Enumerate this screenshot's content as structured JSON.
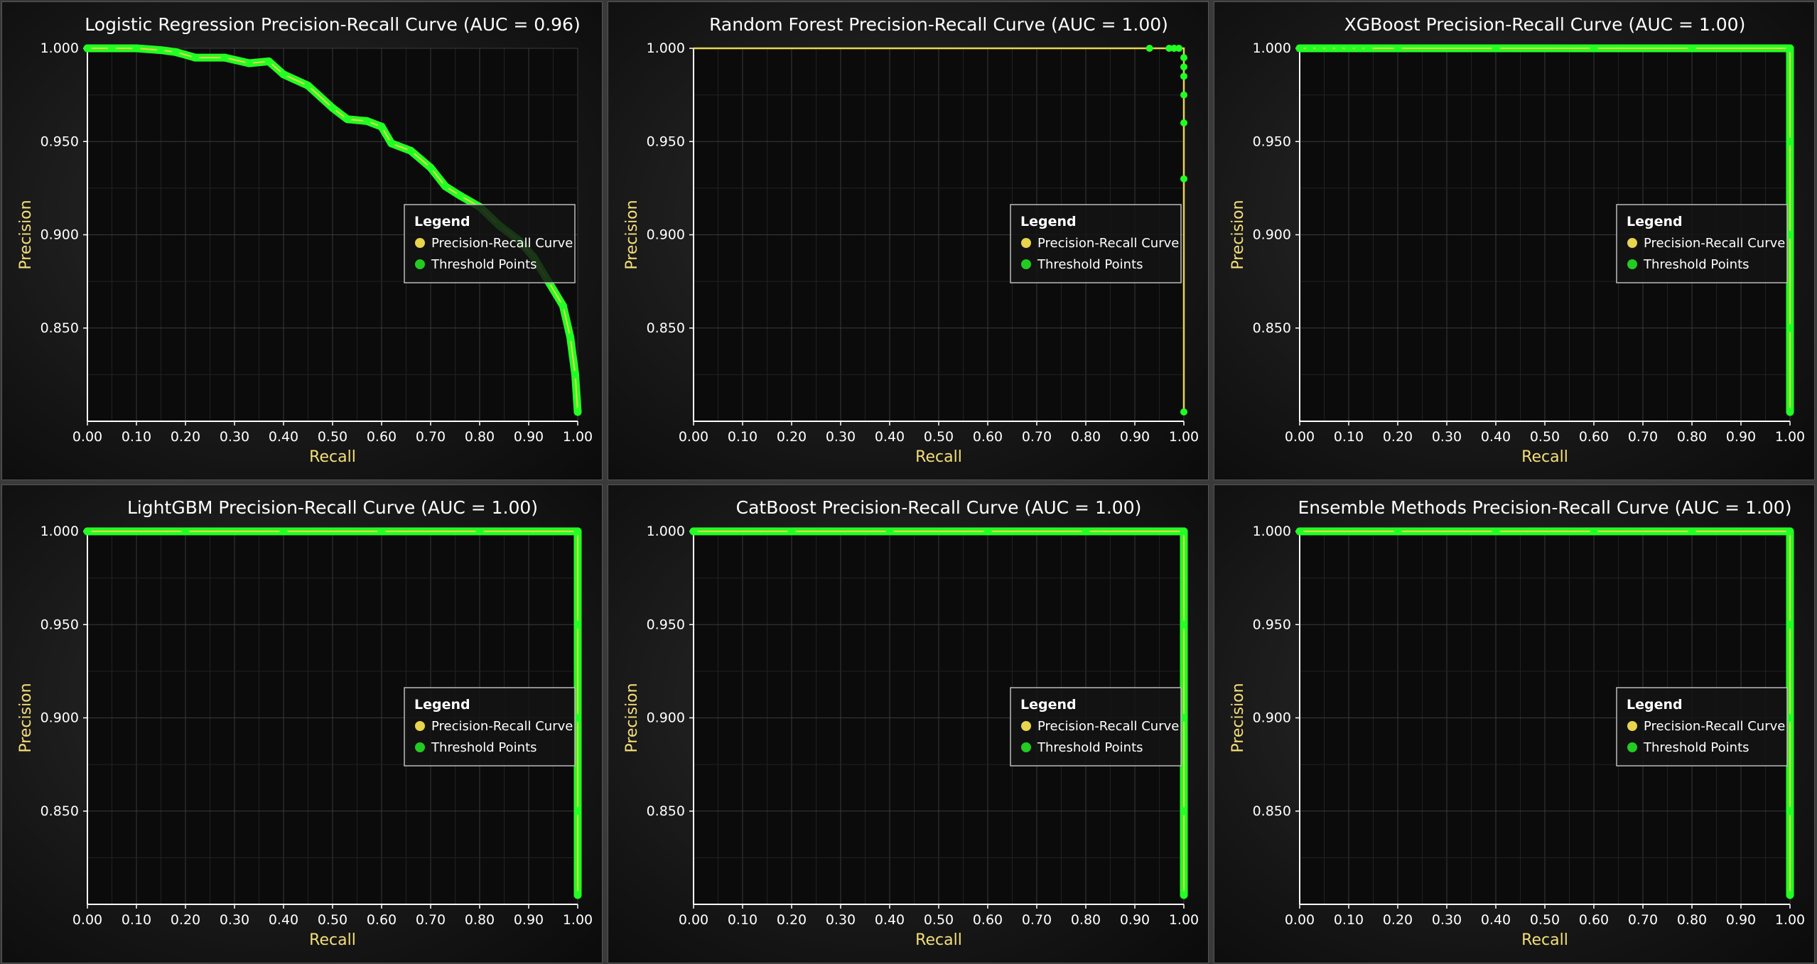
{
  "colors": {
    "curve": "#e8d44d",
    "points": "#22ff22",
    "legend_curve_dot": "#e8d44d",
    "legend_points_dot": "#22cc22",
    "axis_label": "#f5df7a",
    "text": "#ffffff",
    "grid": "#3a3a3a"
  },
  "legend": {
    "title": "Legend",
    "items": [
      {
        "label": "Precision-Recall Curve",
        "color": "#e8d44d"
      },
      {
        "label": "Threshold Points",
        "color": "#22cc22"
      }
    ]
  },
  "chart_data": [
    {
      "type": "line",
      "title": "Logistic Regression Precision-Recall Curve (AUC = 0.96)",
      "xlabel": "Recall",
      "ylabel": "Precision",
      "xlim": [
        0,
        1
      ],
      "ylim": [
        0.8,
        1.0
      ],
      "xticks": [
        "0.00",
        "0.10",
        "0.20",
        "0.30",
        "0.40",
        "0.50",
        "0.60",
        "0.70",
        "0.80",
        "0.90",
        "1.00"
      ],
      "yticks": [
        "0.850",
        "0.900",
        "0.950",
        "1.000"
      ],
      "grid": true,
      "legend_position": "right",
      "series": [
        {
          "name": "Precision-Recall Curve",
          "x": [
            0,
            0.05,
            0.1,
            0.15,
            0.18,
            0.22,
            0.28,
            0.33,
            0.37,
            0.4,
            0.45,
            0.5,
            0.53,
            0.57,
            0.6,
            0.62,
            0.66,
            0.7,
            0.73,
            0.76,
            0.8,
            0.84,
            0.88,
            0.91,
            0.94,
            0.97,
            0.985,
            0.995,
            1.0
          ],
          "y": [
            1.0,
            1.0,
            1.0,
            0.999,
            0.998,
            0.995,
            0.995,
            0.992,
            0.993,
            0.986,
            0.98,
            0.968,
            0.962,
            0.961,
            0.958,
            0.949,
            0.945,
            0.936,
            0.926,
            0.921,
            0.915,
            0.905,
            0.897,
            0.888,
            0.875,
            0.862,
            0.845,
            0.825,
            0.805
          ]
        },
        {
          "name": "Threshold Points",
          "x": [
            0,
            0.05,
            0.1,
            0.15,
            0.18,
            0.22,
            0.28,
            0.33,
            0.37,
            0.4,
            0.45,
            0.5,
            0.53,
            0.57,
            0.6,
            0.62,
            0.66,
            0.7,
            0.73,
            0.76,
            0.8,
            0.84,
            0.88,
            0.91,
            0.94,
            0.97,
            0.985,
            0.995,
            1.0
          ],
          "y": [
            1.0,
            1.0,
            1.0,
            0.999,
            0.998,
            0.995,
            0.995,
            0.992,
            0.993,
            0.986,
            0.98,
            0.968,
            0.962,
            0.961,
            0.958,
            0.949,
            0.945,
            0.936,
            0.926,
            0.921,
            0.915,
            0.905,
            0.897,
            0.888,
            0.875,
            0.862,
            0.845,
            0.825,
            0.805
          ]
        }
      ]
    },
    {
      "type": "line",
      "title": "Random Forest Precision-Recall Curve (AUC = 1.00)",
      "xlabel": "Recall",
      "ylabel": "Precision",
      "xlim": [
        0,
        1
      ],
      "ylim": [
        0.8,
        1.0
      ],
      "xticks": [
        "0.00",
        "0.10",
        "0.20",
        "0.30",
        "0.40",
        "0.50",
        "0.60",
        "0.70",
        "0.80",
        "0.90",
        "1.00"
      ],
      "yticks": [
        "0.850",
        "0.900",
        "0.950",
        "1.000"
      ],
      "grid": true,
      "legend_position": "right",
      "series": [
        {
          "name": "Precision-Recall Curve",
          "x": [
            0,
            0.93,
            0.97,
            0.99,
            1.0,
            1.0,
            1.0,
            1.0,
            1.0,
            1.0,
            1.0
          ],
          "y": [
            1.0,
            1.0,
            1.0,
            1.0,
            1.0,
            0.99,
            0.985,
            0.975,
            0.96,
            0.93,
            0.805
          ]
        },
        {
          "name": "Threshold Points",
          "x": [
            0.93,
            0.97,
            0.98,
            0.99,
            1.0,
            1.0,
            1.0,
            1.0,
            1.0,
            1.0,
            1.0
          ],
          "y": [
            1.0,
            1.0,
            1.0,
            1.0,
            0.995,
            0.99,
            0.985,
            0.975,
            0.96,
            0.93,
            0.805
          ]
        }
      ]
    },
    {
      "type": "line",
      "title": "XGBoost Precision-Recall Curve (AUC = 1.00)",
      "xlabel": "Recall",
      "ylabel": "Precision",
      "xlim": [
        0,
        1
      ],
      "ylim": [
        0.8,
        1.0
      ],
      "xticks": [
        "0.00",
        "0.10",
        "0.20",
        "0.30",
        "0.40",
        "0.50",
        "0.60",
        "0.70",
        "0.80",
        "0.90",
        "1.00"
      ],
      "yticks": [
        "0.850",
        "0.900",
        "0.950",
        "1.000"
      ],
      "grid": true,
      "legend_position": "right",
      "series": [
        {
          "name": "Precision-Recall Curve",
          "x": [
            0,
            1.0,
            1.0
          ],
          "y": [
            1.0,
            1.0,
            0.805
          ]
        },
        {
          "name": "Threshold Points",
          "x": [
            0,
            0.02,
            0.04,
            0.06,
            0.08,
            0.1,
            0.12,
            0.14,
            0.2,
            0.4,
            0.6,
            0.8,
            1.0,
            1.0,
            1.0,
            1.0,
            1.0
          ],
          "y": [
            1.0,
            1.0,
            1.0,
            1.0,
            1.0,
            1.0,
            1.0,
            1.0,
            1.0,
            1.0,
            1.0,
            1.0,
            1.0,
            0.95,
            0.9,
            0.85,
            0.805
          ]
        }
      ]
    },
    {
      "type": "line",
      "title": "LightGBM Precision-Recall Curve (AUC = 1.00)",
      "xlabel": "Recall",
      "ylabel": "Precision",
      "xlim": [
        0,
        1
      ],
      "ylim": [
        0.8,
        1.0
      ],
      "xticks": [
        "0.00",
        "0.10",
        "0.20",
        "0.30",
        "0.40",
        "0.50",
        "0.60",
        "0.70",
        "0.80",
        "0.90",
        "1.00"
      ],
      "yticks": [
        "0.850",
        "0.900",
        "0.950",
        "1.000"
      ],
      "grid": true,
      "legend_position": "right",
      "series": [
        {
          "name": "Precision-Recall Curve",
          "x": [
            0,
            1.0,
            1.0
          ],
          "y": [
            1.0,
            1.0,
            0.805
          ]
        },
        {
          "name": "Threshold Points",
          "x": [
            0,
            0.2,
            0.4,
            0.6,
            0.8,
            1.0,
            1.0,
            1.0,
            1.0,
            1.0
          ],
          "y": [
            1.0,
            1.0,
            1.0,
            1.0,
            1.0,
            1.0,
            0.95,
            0.9,
            0.85,
            0.805
          ]
        }
      ]
    },
    {
      "type": "line",
      "title": "CatBoost Precision-Recall Curve (AUC = 1.00)",
      "xlabel": "Recall",
      "ylabel": "Precision",
      "xlim": [
        0,
        1
      ],
      "ylim": [
        0.8,
        1.0
      ],
      "xticks": [
        "0.00",
        "0.10",
        "0.20",
        "0.30",
        "0.40",
        "0.50",
        "0.60",
        "0.70",
        "0.80",
        "0.90",
        "1.00"
      ],
      "yticks": [
        "0.850",
        "0.900",
        "0.950",
        "1.000"
      ],
      "grid": true,
      "legend_position": "right",
      "series": [
        {
          "name": "Precision-Recall Curve",
          "x": [
            0,
            1.0,
            1.0
          ],
          "y": [
            1.0,
            1.0,
            0.805
          ]
        },
        {
          "name": "Threshold Points",
          "x": [
            0,
            0.2,
            0.4,
            0.6,
            0.8,
            1.0,
            1.0,
            1.0,
            1.0,
            1.0
          ],
          "y": [
            1.0,
            1.0,
            1.0,
            1.0,
            1.0,
            1.0,
            0.95,
            0.9,
            0.85,
            0.805
          ]
        }
      ]
    },
    {
      "type": "line",
      "title": "Ensemble Methods Precision-Recall Curve (AUC = 1.00)",
      "xlabel": "Recall",
      "ylabel": "Precision",
      "xlim": [
        0,
        1
      ],
      "ylim": [
        0.8,
        1.0
      ],
      "xticks": [
        "0.00",
        "0.10",
        "0.20",
        "0.30",
        "0.40",
        "0.50",
        "0.60",
        "0.70",
        "0.80",
        "0.90",
        "1.00"
      ],
      "yticks": [
        "0.850",
        "0.900",
        "0.950",
        "1.000"
      ],
      "grid": true,
      "legend_position": "right",
      "series": [
        {
          "name": "Precision-Recall Curve",
          "x": [
            0,
            1.0,
            1.0
          ],
          "y": [
            1.0,
            1.0,
            0.805
          ]
        },
        {
          "name": "Threshold Points",
          "x": [
            0,
            0.2,
            0.4,
            0.6,
            0.8,
            1.0,
            1.0,
            1.0,
            1.0,
            1.0
          ],
          "y": [
            1.0,
            1.0,
            1.0,
            1.0,
            1.0,
            1.0,
            0.95,
            0.9,
            0.85,
            0.805
          ]
        }
      ]
    }
  ]
}
